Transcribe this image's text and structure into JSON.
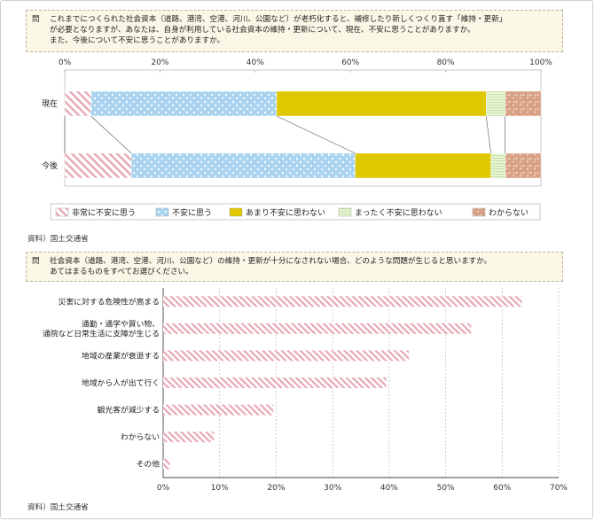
{
  "question1": {
    "mark": "問",
    "text": "これまでにつくられた社会資本（道路、港湾、空港、河川、公園など）が老朽化すると、補修したり新しくつくり直す「維持・更新」\nが必要となりますが、あなたは、自身が利用している社会資本の維持・更新について、現在、不安に思うことがありますか。\nまた、今後について不安に思うことがありますか。"
  },
  "question2": {
    "mark": "問",
    "text": "社会資本（道路、港湾、空港、河川、公園など）の維持・更新が十分になされない場合、どのような問題が生じると思いますか。\nあてはまるものをすべてお選びください。"
  },
  "source1": "資料）国土交通省",
  "source2": "資料）国土交通省",
  "chart_data": [
    {
      "type": "bar",
      "orientation": "horizontal-stacked-100",
      "categories": [
        "現在",
        "今後"
      ],
      "x_ticks": [
        "0%",
        "20%",
        "40%",
        "60%",
        "80%",
        "100%"
      ],
      "xlim": [
        0,
        100
      ],
      "series": [
        {
          "name": "非常に不安に思う",
          "values": [
            5.5,
            14.0
          ]
        },
        {
          "name": "不安に思う",
          "values": [
            39.0,
            47.0
          ]
        },
        {
          "name": "あまり不安に思わない",
          "values": [
            44.0,
            28.5
          ]
        },
        {
          "name": "まったく不安に思わない",
          "values": [
            4.0,
            3.0
          ]
        },
        {
          "name": "わからない",
          "values": [
            7.5,
            7.5
          ]
        }
      ],
      "legend_position": "bottom",
      "colors": [
        "#e8a8b4",
        "#a9d3ef",
        "#e0c800",
        "#c7e3a2",
        "#d9a083"
      ]
    },
    {
      "type": "bar",
      "orientation": "horizontal",
      "categories": [
        "災害に対する危険性が高まる",
        "通勤・通学や買い物、\n通院など日常生活に支障が生じる",
        "地域の産業が衰退する",
        "地域から人が出て行く",
        "観光客が減少する",
        "わからない",
        "その他"
      ],
      "values": [
        63.5,
        54.5,
        43.5,
        39.5,
        19.5,
        9.0,
        1.2
      ],
      "x_ticks": [
        "0%",
        "10%",
        "20%",
        "30%",
        "40%",
        "50%",
        "60%",
        "70%"
      ],
      "xlim": [
        0,
        70
      ],
      "grid": true,
      "colors": [
        "#e8a8b4"
      ]
    }
  ]
}
